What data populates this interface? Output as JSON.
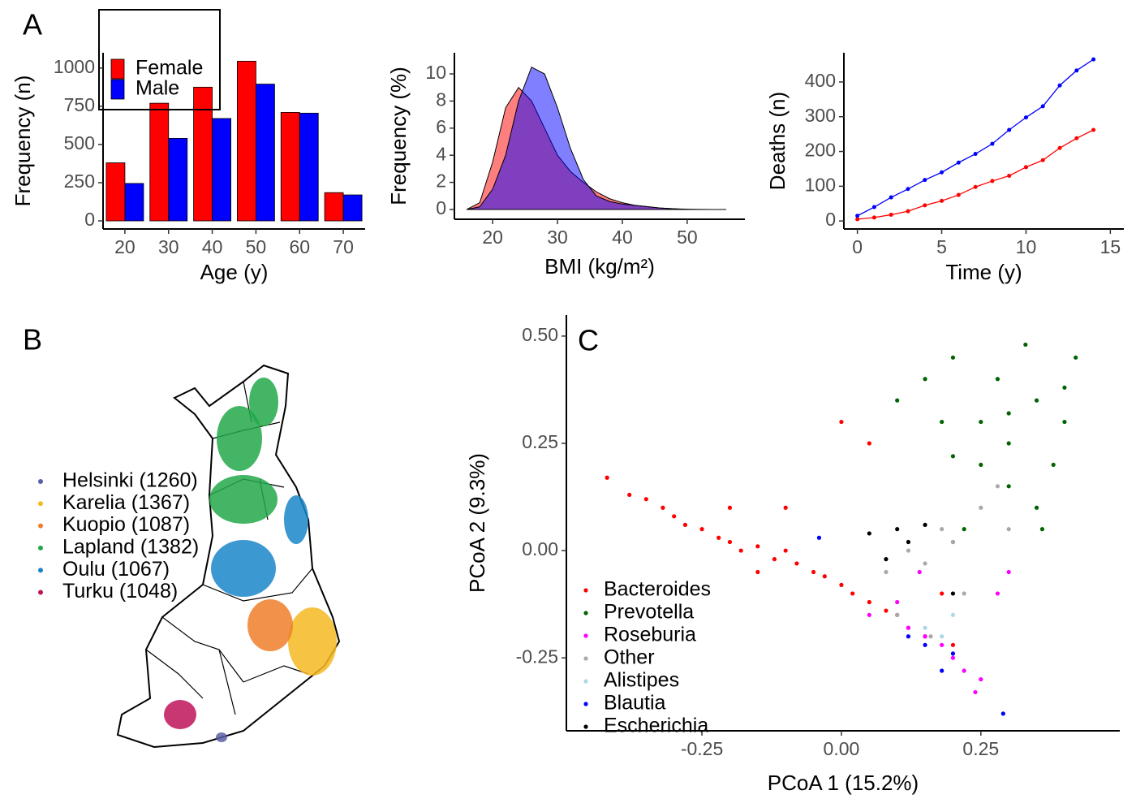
{
  "chart_data": [
    {
      "type": "bar",
      "label": "A",
      "xlabel": "Age (y)",
      "ylabel": "Frequency (n)",
      "categories": [
        "20",
        "30",
        "40",
        "50",
        "60",
        "70"
      ],
      "series": [
        {
          "name": "Female",
          "color": "#ff0000",
          "values": [
            380,
            770,
            875,
            1045,
            710,
            185
          ]
        },
        {
          "name": "Male",
          "color": "#0000ff",
          "values": [
            245,
            540,
            670,
            895,
            705,
            170
          ]
        }
      ],
      "ylim": [
        -53,
        1100
      ],
      "yticks": [
        0,
        250,
        500,
        750,
        1000
      ]
    },
    {
      "type": "area",
      "xlabel": "BMI (kg/m²)",
      "ylabel": "Frequency (%)",
      "x": [
        16,
        18,
        20,
        22,
        24,
        26,
        28,
        30,
        32,
        34,
        36,
        38,
        40,
        42,
        44,
        46,
        48,
        50,
        52,
        54,
        56
      ],
      "series": [
        {
          "color": "#ff0000",
          "values": [
            0,
            0.5,
            3.5,
            7.5,
            9.0,
            8.0,
            6.0,
            4.0,
            2.8,
            2.0,
            1.3,
            0.8,
            0.5,
            0.3,
            0.2,
            0.1,
            0.05,
            0,
            0,
            0,
            0
          ]
        },
        {
          "color": "#0000ff",
          "values": [
            0,
            0.2,
            1.5,
            4.0,
            8.0,
            10.5,
            10.0,
            7.5,
            4.5,
            2.2,
            1.0,
            0.6,
            0.4,
            0.3,
            0.2,
            0.1,
            0.05,
            0.02,
            0.01,
            0,
            0
          ]
        }
      ],
      "xlim": [
        14.1,
        58.9
      ],
      "xticks": [
        20,
        30,
        40,
        50
      ],
      "ylim": [
        -0.72,
        11.56
      ],
      "yticks": [
        0,
        2,
        4,
        6,
        8,
        10
      ]
    },
    {
      "type": "line",
      "xlabel": "Time (y)",
      "ylabel": "Deaths (n)",
      "x": [
        0,
        1,
        2,
        3,
        4,
        5,
        6,
        7,
        8,
        9,
        10,
        11,
        12,
        13,
        14
      ],
      "series": [
        {
          "color": "#ff0000",
          "values": [
            5,
            10,
            18,
            28,
            45,
            58,
            75,
            98,
            115,
            130,
            155,
            175,
            210,
            238,
            262
          ]
        },
        {
          "color": "#0000ff",
          "values": [
            15,
            40,
            68,
            92,
            118,
            140,
            168,
            193,
            222,
            262,
            298,
            330,
            390,
            433,
            465
          ]
        }
      ],
      "xlim": [
        -0.8,
        15.8
      ],
      "xticks": [
        0,
        5,
        10,
        15
      ],
      "ylim": [
        -23,
        484
      ],
      "yticks": [
        0,
        100,
        200,
        300,
        400
      ]
    },
    {
      "type": "map",
      "label": "B",
      "series": [
        {
          "name": "Helsinki (1260)",
          "color": "#5b5ea6"
        },
        {
          "name": "Karelia (1367)",
          "color": "#f5b921"
        },
        {
          "name": "Kuopio (1087)",
          "color": "#f07f2a"
        },
        {
          "name": "Lapland (1382)",
          "color": "#22a84a"
        },
        {
          "name": "Oulu (1067)",
          "color": "#1a86c8"
        },
        {
          "name": "Turku (1048)",
          "color": "#c0145a"
        }
      ]
    },
    {
      "type": "scatter",
      "label": "C",
      "xlabel": "PCoA 1 (15.2%)",
      "ylabel": "PCoA 2 (9.3%)",
      "series": [
        {
          "name": "Bacteroides",
          "color": "#ff0000",
          "x": [
            -0.42,
            -0.38,
            -0.35,
            -0.32,
            -0.3,
            -0.28,
            -0.25,
            -0.22,
            -0.2,
            -0.18,
            -0.15,
            -0.12,
            -0.1,
            -0.08,
            -0.05,
            -0.03,
            0,
            0.02,
            0.05,
            0.08,
            0.1,
            0.12,
            0.15,
            -0.2,
            -0.1,
            0,
            0.05,
            -0.15,
            0.18,
            0.2
          ],
          "values": [
            0.17,
            0.13,
            0.12,
            0.1,
            0.08,
            0.06,
            0.05,
            0.03,
            0.02,
            0,
            0.01,
            -0.02,
            0,
            -0.03,
            -0.05,
            -0.06,
            -0.08,
            -0.1,
            -0.12,
            -0.14,
            -0.15,
            -0.18,
            -0.2,
            0.1,
            0.1,
            0.3,
            0.25,
            -0.05,
            -0.1,
            -0.22
          ]
        },
        {
          "name": "Prevotella",
          "color": "#006400",
          "x": [
            0.1,
            0.15,
            0.2,
            0.25,
            0.3,
            0.35,
            0.4,
            0.42,
            0.3,
            0.25,
            0.35,
            0.2,
            0.38,
            0.28,
            0.33,
            0.18,
            0.22,
            0.4,
            0.3,
            0.36
          ],
          "values": [
            0.35,
            0.4,
            0.45,
            0.3,
            0.25,
            0.35,
            0.3,
            0.45,
            0.15,
            0.2,
            0.1,
            0.22,
            0.2,
            0.4,
            0.48,
            0.3,
            0.05,
            0.38,
            0.32,
            0.05
          ]
        },
        {
          "name": "Roseburia",
          "color": "#ff00ff",
          "x": [
            0.05,
            0.1,
            0.12,
            0.15,
            0.18,
            0.2,
            0.22,
            0.25,
            0.28,
            0.3,
            0.14,
            0.2,
            0.24
          ],
          "values": [
            -0.15,
            -0.12,
            -0.18,
            -0.2,
            -0.22,
            -0.25,
            -0.28,
            -0.3,
            -0.1,
            -0.05,
            -0.05,
            0.02,
            -0.33
          ]
        },
        {
          "name": "Other",
          "color": "#a9a9a9",
          "x": [
            0.08,
            0.12,
            0.15,
            0.18,
            0.2,
            0.22,
            0.25,
            0.28,
            0.1,
            0.16,
            0.3
          ],
          "values": [
            -0.05,
            0,
            -0.03,
            0.05,
            0.02,
            -0.1,
            0.1,
            0.15,
            -0.15,
            -0.2,
            0.05
          ]
        },
        {
          "name": "Alistipes",
          "color": "#add8e6",
          "x": [
            0.15,
            0.18,
            0.2
          ],
          "values": [
            -0.18,
            -0.2,
            -0.15
          ]
        },
        {
          "name": "Blautia",
          "color": "#0000ff",
          "x": [
            0.12,
            0.15,
            0.18,
            0.2,
            -0.04,
            0.29
          ],
          "values": [
            -0.2,
            -0.22,
            -0.28,
            -0.24,
            0.03,
            -0.38
          ]
        },
        {
          "name": "Escherichia",
          "color": "#000000",
          "x": [
            0.1,
            0.12,
            0.15,
            0.08,
            0.2,
            0.05
          ],
          "values": [
            0.05,
            0.02,
            0.06,
            -0.02,
            -0.1,
            0.04
          ]
        }
      ],
      "xlim": [
        -0.493,
        0.499
      ],
      "xticks": [
        {
          "value": -0.25,
          "label": "-0.25"
        },
        {
          "value": 0,
          "label": "0.00"
        },
        {
          "value": 0.25,
          "label": "0.25"
        }
      ],
      "ylim": [
        -0.42,
        0.549
      ],
      "yticks": [
        {
          "value": -0.25,
          "label": "-0.25"
        },
        {
          "value": 0,
          "label": "0.00"
        },
        {
          "value": 0.25,
          "label": "0.25"
        },
        {
          "value": 0.5,
          "label": "0.50"
        }
      ]
    }
  ]
}
